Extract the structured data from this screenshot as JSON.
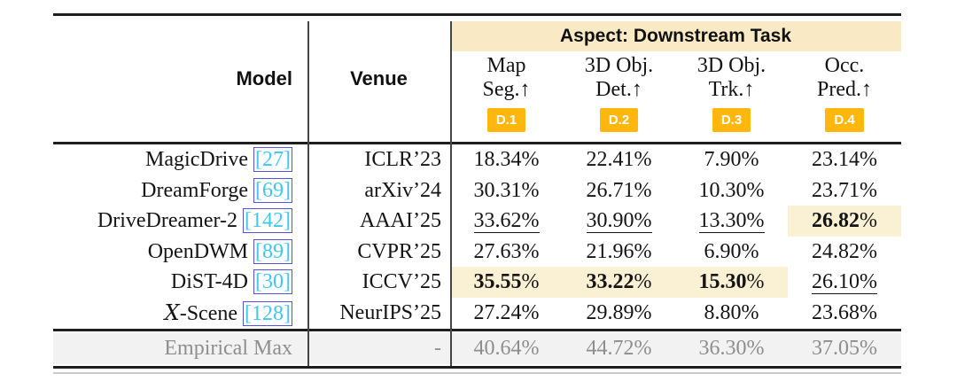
{
  "colors": {
    "aspect_band_bg": "#f9e9c5",
    "highlight_bg": "#faf0d3",
    "badge_bg": "#ffb70d",
    "citation_text": "#3fc6f2",
    "citation_border": "#5552e0",
    "footer_bg": "#f2f2f2",
    "footer_text": "#8e8e8e",
    "rule": "#1e1e1e"
  },
  "table": {
    "aspect_header": "Aspect: Downstream Task",
    "model_header": "Model",
    "venue_header": "Venue",
    "columns": [
      {
        "line1": "Map",
        "line2": "Seg.↑",
        "badge": "D.1"
      },
      {
        "line1": "3D Obj.",
        "line2": "Det.↑",
        "badge": "D.2"
      },
      {
        "line1": "3D Obj.",
        "line2": "Trk.↑",
        "badge": "D.3"
      },
      {
        "line1": "Occ.",
        "line2": "Pred.↑",
        "badge": "D.4"
      }
    ],
    "rows": [
      {
        "model": "MagicDrive",
        "cite": "[27]",
        "venue": "ICLR’23",
        "values": [
          {
            "text": "18.34%",
            "style": "plain"
          },
          {
            "text": "22.41%",
            "style": "plain"
          },
          {
            "text": "7.90%",
            "style": "plain"
          },
          {
            "text": "23.14%",
            "style": "plain"
          }
        ]
      },
      {
        "model": "DreamForge",
        "cite": "[69]",
        "venue": "arXiv’24",
        "values": [
          {
            "text": "30.31%",
            "style": "plain"
          },
          {
            "text": "26.71%",
            "style": "plain"
          },
          {
            "text": "10.30%",
            "style": "plain"
          },
          {
            "text": "23.71%",
            "style": "plain"
          }
        ]
      },
      {
        "model": "DriveDreamer-2",
        "cite": "[142]",
        "venue": "AAAI’25",
        "values": [
          {
            "text": "33.62%",
            "style": "underline"
          },
          {
            "text": "30.90%",
            "style": "underline"
          },
          {
            "text": "13.30%",
            "style": "underline"
          },
          {
            "text": "26.82%",
            "style": "bold-highlight"
          }
        ]
      },
      {
        "model": "OpenDWM",
        "cite": "[89]",
        "venue": "CVPR’25",
        "values": [
          {
            "text": "27.63%",
            "style": "plain"
          },
          {
            "text": "21.96%",
            "style": "plain"
          },
          {
            "text": "6.90%",
            "style": "plain"
          },
          {
            "text": "24.82%",
            "style": "plain"
          }
        ]
      },
      {
        "model": "DiST-4D",
        "cite": "[30]",
        "venue": "ICCV’25",
        "values": [
          {
            "text": "35.55%",
            "style": "bold-highlight"
          },
          {
            "text": "33.22%",
            "style": "bold-highlight"
          },
          {
            "text": "15.30%",
            "style": "bold-highlight"
          },
          {
            "text": "26.10%",
            "style": "underline"
          }
        ]
      },
      {
        "model": "𝒳-Scene",
        "cite": "[128]",
        "venue": "NeurIPS’25",
        "values": [
          {
            "text": "27.24%",
            "style": "plain"
          },
          {
            "text": "29.89%",
            "style": "plain"
          },
          {
            "text": "8.80%",
            "style": "plain"
          },
          {
            "text": "23.68%",
            "style": "plain"
          }
        ]
      }
    ],
    "footer": {
      "label": "Empirical Max",
      "venue": "-",
      "values": [
        "40.64%",
        "44.72%",
        "36.30%",
        "37.05%"
      ]
    }
  }
}
